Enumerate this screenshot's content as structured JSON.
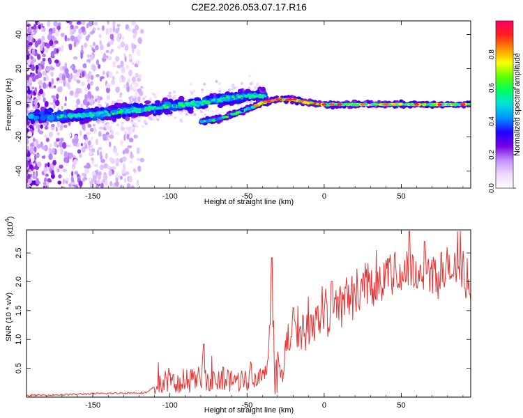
{
  "title": "C2E2.2026.053.07.17.R16",
  "chart_data": [
    {
      "type": "heatmap",
      "name": "spectrogram",
      "xlabel": "Height of straight line (km)",
      "ylabel": "Frequency (Hz)",
      "xlim": [
        -193,
        95
      ],
      "ylim": [
        -50,
        48
      ],
      "xticks": [
        -150,
        -100,
        -50,
        0,
        50
      ],
      "yticks": [
        -40,
        -20,
        0,
        20,
        40
      ],
      "tracks": [
        {
          "name": "main-track",
          "points": [
            [
              -190,
              -8
            ],
            [
              -170,
              -8
            ],
            [
              -150,
              -7
            ],
            [
              -130,
              -5
            ],
            [
              -110,
              -3
            ],
            [
              -90,
              -1
            ],
            [
              -80,
              0
            ],
            [
              -60,
              3
            ],
            [
              -50,
              4
            ],
            [
              -40,
              4
            ]
          ]
        },
        {
          "name": "rising-track",
          "points": [
            [
              -80,
              -11
            ],
            [
              -70,
              -10
            ],
            [
              -60,
              -7
            ],
            [
              -50,
              -4
            ],
            [
              -40,
              0
            ],
            [
              -30,
              2
            ],
            [
              -20,
              2
            ],
            [
              -10,
              0
            ],
            [
              0,
              -1
            ],
            [
              10,
              -1
            ],
            [
              30,
              -1
            ],
            [
              60,
              -1
            ],
            [
              95,
              -1
            ]
          ]
        }
      ],
      "colorbar": {
        "label": "Normalized spectral amplitude",
        "range": [
          0.0,
          1.0
        ],
        "ticks": [
          "0.0",
          "0.2",
          "0.4",
          "0.6",
          "0.8"
        ],
        "tick_values": [
          0.0,
          0.2,
          0.4,
          0.6,
          0.8
        ],
        "colors": [
          "#ffffff",
          "#f0d8ff",
          "#c090ff",
          "#7a00e0",
          "#2000ff",
          "#0090ff",
          "#00e0e0",
          "#00ff60",
          "#60ff00",
          "#ffff00",
          "#ff9000",
          "#ff2020",
          "#ff0060"
        ]
      }
    },
    {
      "type": "line",
      "name": "snr",
      "xlabel": "Height of straight line (km)",
      "ylabel": "SNR (10 * v/v)",
      "scale_label": "(x10",
      "scale_exponent": "4",
      "scale_suffix": ")",
      "xlim": [
        -193,
        95
      ],
      "ylim": [
        0,
        2.9
      ],
      "xticks": [
        -150,
        -100,
        -50,
        0,
        50
      ],
      "yticks": [
        0.5,
        1.0,
        1.5,
        2.0,
        2.5
      ],
      "color": "#e83030",
      "series": [
        {
          "name": "SNR",
          "x": [
            -193,
            -170,
            -150,
            -130,
            -115,
            -110,
            -100,
            -90,
            -80,
            -70,
            -60,
            -50,
            -45,
            -40,
            -36,
            -34,
            -32,
            -30,
            -25,
            -20,
            -10,
            0,
            10,
            20,
            30,
            40,
            50,
            60,
            70,
            80,
            95
          ],
          "y": [
            0.03,
            0.04,
            0.06,
            0.07,
            0.08,
            0.18,
            0.25,
            0.28,
            0.32,
            0.3,
            0.3,
            0.32,
            0.38,
            0.45,
            0.6,
            2.42,
            0.45,
            0.5,
            0.8,
            1.05,
            1.25,
            1.45,
            1.6,
            1.8,
            2.0,
            2.1,
            2.15,
            2.2,
            2.15,
            2.2,
            2.1
          ],
          "peaks": [
            [
              -78,
              0.92
            ],
            [
              -34,
              2.42
            ],
            [
              55,
              2.88
            ],
            [
              65,
              2.7
            ],
            [
              -20,
              1.55
            ],
            [
              5,
              2.0
            ]
          ]
        }
      ]
    }
  ]
}
